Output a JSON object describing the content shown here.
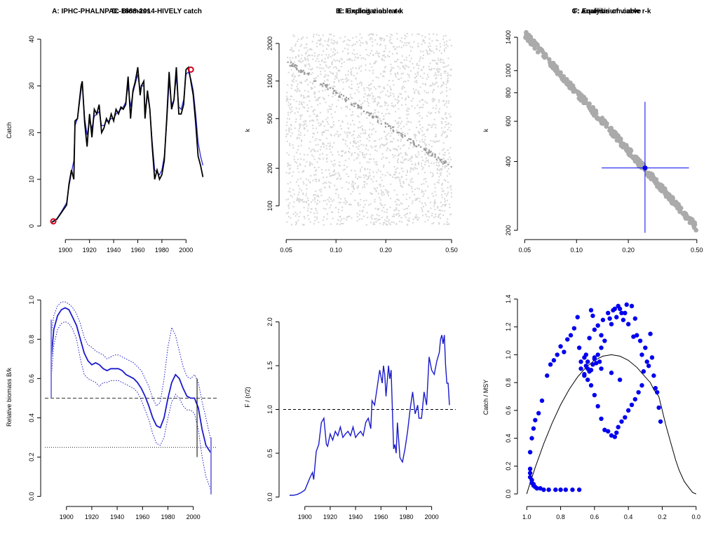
{
  "colors": {
    "catch_line": "#000000",
    "smooth_line": "#2b2bd8",
    "marker": "#d0021b",
    "cloud": "#d6d6d6",
    "viable": "#9a9a9a",
    "viable_big": "#aaaaaa",
    "best": "#0000ee",
    "biomass": "#1a1acc",
    "axis": "#000000"
  },
  "chart_data": [
    {
      "panel": "A",
      "type": "line",
      "title": "A:  IPHC-PHALNPAC-1888-2014-HIVELY catch",
      "xlabel": "",
      "ylabel": "Catch",
      "xlim": [
        1883,
        2019
      ],
      "ylim": [
        -2,
        43
      ],
      "xticks": [
        1900,
        1920,
        1940,
        1960,
        1980,
        2000
      ],
      "yticks": [
        0,
        10,
        20,
        30,
        40
      ],
      "x": [
        1889,
        1893,
        1897,
        1901,
        1903,
        1905,
        1907,
        1908,
        1910,
        1913,
        1914,
        1916,
        1918,
        1920,
        1922,
        1924,
        1926,
        1928,
        1930,
        1932,
        1934,
        1936,
        1938,
        1940,
        1942,
        1944,
        1946,
        1948,
        1950,
        1952,
        1954,
        1956,
        1958,
        1960,
        1962,
        1963,
        1965,
        1966,
        1968,
        1970,
        1972,
        1974,
        1976,
        1978,
        1980,
        1982,
        1984,
        1986,
        1988,
        1990,
        1992,
        1994,
        1996,
        1998,
        2000,
        2002,
        2004,
        2006,
        2008,
        2010,
        2012,
        2014
      ],
      "catch": [
        0.8,
        1.5,
        3.0,
        4.5,
        9.0,
        12.0,
        10.0,
        22.5,
        23.0,
        30.0,
        31.0,
        22.0,
        17.0,
        24.0,
        19.0,
        25.0,
        24.0,
        26.0,
        20.0,
        21.0,
        23.0,
        22.0,
        24.0,
        22.5,
        25.0,
        24.0,
        25.5,
        25.0,
        26.0,
        32.0,
        23.0,
        29.0,
        31.0,
        34.0,
        28.0,
        30.0,
        31.0,
        23.0,
        29.0,
        25.0,
        17.0,
        10.0,
        12.0,
        10.0,
        11.0,
        14.0,
        23.0,
        33.0,
        25.0,
        27.0,
        34.0,
        24.0,
        24.0,
        26.0,
        33.5,
        34.0,
        31.0,
        28.0,
        22.0,
        15.0,
        13.0,
        10.5
      ],
      "smooth": [
        0.9,
        1.6,
        3.2,
        5.0,
        8.5,
        11.5,
        14.0,
        21.5,
        23.0,
        29.0,
        30.5,
        23.0,
        19.5,
        22.5,
        21.0,
        23.5,
        24.0,
        24.5,
        21.5,
        21.5,
        22.5,
        22.5,
        23.0,
        23.0,
        24.0,
        24.5,
        25.0,
        25.5,
        26.5,
        30.0,
        25.5,
        28.5,
        30.5,
        32.5,
        29.0,
        30.0,
        30.0,
        25.0,
        28.0,
        25.0,
        18.0,
        12.0,
        11.5,
        11.0,
        12.0,
        15.0,
        22.0,
        31.0,
        26.0,
        27.0,
        32.0,
        25.5,
        25.0,
        27.0,
        32.5,
        33.0,
        31.5,
        29.0,
        24.0,
        18.0,
        15.0,
        13.0
      ],
      "markers": [
        {
          "x": 1890,
          "y": 1.0
        },
        {
          "x": 2004,
          "y": 33.5
        }
      ]
    },
    {
      "panel": "B",
      "type": "scatter",
      "title": "B: Finding viable r-k",
      "xlabel": "",
      "ylabel": "k",
      "xscale": "log",
      "yscale": "log",
      "xlim": [
        0.048,
        0.53
      ],
      "ylim": [
        58,
        2800
      ],
      "xticks": [
        0.05,
        0.1,
        0.2,
        0.5
      ],
      "xtick_labels": [
        "0.05",
        "0.10",
        "0.20",
        "0.50"
      ],
      "yticks": [
        100,
        200,
        500,
        1000,
        2000
      ],
      "xticks_formatted": true,
      "cloud_r_range": [
        0.05,
        0.5
      ],
      "cloud_k_range": [
        70,
        2400
      ],
      "viable_line": {
        "r": [
          0.05,
          0.5
        ],
        "k": [
          1450,
          205
        ],
        "band": 0.09
      }
    },
    {
      "panel": "C",
      "type": "scatter",
      "title": "C: Analysis of viable r-k",
      "xlabel": "",
      "ylabel": "k",
      "xscale": "log",
      "yscale": "log",
      "xlim": [
        0.048,
        0.53
      ],
      "ylim": [
        190,
        1580
      ],
      "xticks": [
        0.05,
        0.1,
        0.2,
        0.5
      ],
      "xtick_labels": [
        "0.05",
        "0.10",
        "0.20",
        "0.50"
      ],
      "yticks": [
        200,
        400,
        600,
        800,
        1000,
        1400
      ],
      "viable_line": {
        "r": [
          0.05,
          0.5
        ],
        "k": [
          1450,
          205
        ],
        "band": 0.07
      },
      "best": {
        "r": 0.25,
        "k": 375
      },
      "r_ci": [
        0.14,
        0.45
      ],
      "k_ci": [
        195,
        730
      ]
    },
    {
      "panel": "D",
      "type": "line",
      "title": "D: Biomass",
      "xlabel": "",
      "ylabel": "Relative biomass B/k",
      "xlim": [
        1883,
        2019
      ],
      "ylim": [
        -0.03,
        1.04
      ],
      "xticks": [
        1900,
        1920,
        1940,
        1960,
        1980,
        2000
      ],
      "yticks": [
        0.0,
        0.2,
        0.4,
        0.6,
        0.8,
        1.0
      ],
      "ytick_labels": [
        "0.0",
        "0.2",
        "0.4",
        "0.6",
        "0.8",
        "1.0"
      ],
      "x": [
        1888,
        1890,
        1893,
        1896,
        1899,
        1902,
        1905,
        1908,
        1911,
        1914,
        1917,
        1920,
        1923,
        1926,
        1929,
        1932,
        1935,
        1938,
        1941,
        1944,
        1947,
        1950,
        1953,
        1956,
        1959,
        1962,
        1965,
        1968,
        1971,
        1974,
        1977,
        1980,
        1983,
        1986,
        1989,
        1992,
        1995,
        1998,
        2001,
        2004,
        2007,
        2010,
        2014
      ],
      "median": [
        0.7,
        0.85,
        0.92,
        0.95,
        0.96,
        0.95,
        0.91,
        0.87,
        0.8,
        0.73,
        0.69,
        0.67,
        0.68,
        0.67,
        0.65,
        0.64,
        0.65,
        0.65,
        0.65,
        0.64,
        0.62,
        0.61,
        0.6,
        0.58,
        0.55,
        0.51,
        0.46,
        0.4,
        0.36,
        0.35,
        0.4,
        0.5,
        0.58,
        0.62,
        0.6,
        0.55,
        0.51,
        0.5,
        0.5,
        0.45,
        0.34,
        0.26,
        0.22
      ],
      "lower": [
        0.6,
        0.77,
        0.85,
        0.88,
        0.89,
        0.88,
        0.85,
        0.8,
        0.7,
        0.62,
        0.6,
        0.59,
        0.58,
        0.56,
        0.58,
        0.58,
        0.59,
        0.59,
        0.59,
        0.58,
        0.57,
        0.56,
        0.55,
        0.53,
        0.49,
        0.44,
        0.39,
        0.32,
        0.27,
        0.26,
        0.3,
        0.4,
        0.48,
        0.52,
        0.5,
        0.46,
        0.44,
        0.44,
        0.42,
        0.34,
        0.2,
        0.1,
        0.03
      ],
      "upper": [
        0.82,
        0.92,
        0.97,
        0.99,
        0.99,
        0.98,
        0.96,
        0.93,
        0.88,
        0.81,
        0.77,
        0.76,
        0.74,
        0.73,
        0.72,
        0.7,
        0.71,
        0.72,
        0.72,
        0.71,
        0.7,
        0.69,
        0.68,
        0.66,
        0.64,
        0.6,
        0.56,
        0.5,
        0.46,
        0.48,
        0.6,
        0.76,
        0.86,
        0.82,
        0.74,
        0.66,
        0.61,
        0.6,
        0.62,
        0.58,
        0.48,
        0.4,
        0.28
      ],
      "hline_dashed": 0.5,
      "hline_dotted": 0.25,
      "start_bar": {
        "x": 1888,
        "y": [
          0.5,
          0.9
        ]
      },
      "mid_bar": {
        "x": 2003,
        "y": [
          0.2,
          0.6
        ]
      },
      "end_bar": {
        "x": 2014,
        "y": [
          0.01,
          0.3
        ]
      }
    },
    {
      "panel": "E",
      "type": "line",
      "title": "E: Exploitation rate",
      "xlabel": "",
      "ylabel": "F / (r/2)",
      "xlim": [
        1883,
        2019
      ],
      "ylim": [
        -0.06,
        2.34
      ],
      "xticks": [
        1900,
        1920,
        1940,
        1960,
        1980,
        2000
      ],
      "yticks": [
        0.0,
        0.5,
        1.0,
        1.5,
        2.0
      ],
      "ytick_labels": [
        "0.0",
        "0.5",
        "1.0",
        "1.5",
        "2.0"
      ],
      "hline_dashed": 1.0,
      "x": [
        1888,
        1891,
        1894,
        1897,
        1900,
        1902,
        1904,
        1906,
        1907,
        1909,
        1911,
        1913,
        1915,
        1917,
        1918,
        1920,
        1922,
        1924,
        1926,
        1928,
        1930,
        1932,
        1934,
        1936,
        1938,
        1940,
        1942,
        1944,
        1946,
        1948,
        1950,
        1952,
        1953,
        1955,
        1957,
        1959,
        1961,
        1962,
        1963,
        1964,
        1966,
        1967,
        1968,
        1969,
        1970,
        1971,
        1972,
        1973,
        1975,
        1977,
        1979,
        1981,
        1983,
        1985,
        1987,
        1989,
        1990,
        1992,
        1994,
        1996,
        1998,
        2000,
        2002,
        2004,
        2006,
        2007,
        2008,
        2009,
        2010,
        2011,
        2012,
        2013,
        2014
      ],
      "f": [
        0.02,
        0.02,
        0.03,
        0.05,
        0.08,
        0.15,
        0.22,
        0.28,
        0.2,
        0.52,
        0.6,
        0.85,
        0.9,
        0.6,
        0.58,
        0.72,
        0.65,
        0.75,
        0.7,
        0.8,
        0.68,
        0.72,
        0.75,
        0.7,
        0.8,
        0.68,
        0.72,
        0.75,
        0.7,
        0.85,
        0.9,
        0.78,
        1.1,
        1.05,
        1.25,
        1.45,
        1.3,
        1.5,
        1.4,
        1.15,
        1.5,
        1.35,
        1.45,
        1.0,
        0.55,
        0.6,
        0.5,
        0.85,
        0.45,
        0.4,
        0.55,
        0.75,
        1.0,
        1.2,
        0.95,
        1.05,
        0.9,
        0.9,
        1.2,
        1.05,
        1.6,
        1.45,
        1.4,
        1.55,
        1.65,
        1.8,
        1.85,
        1.75,
        1.85,
        1.5,
        1.3,
        1.3,
        1.05
      ]
    },
    {
      "panel": "F",
      "type": "scatter",
      "title": "F: Equilibrium curve",
      "xlabel": "",
      "ylabel": "Catch / MSY",
      "xlim": [
        1.03,
        -0.03
      ],
      "ylim": [
        -0.06,
        1.45
      ],
      "xticks": [
        1.0,
        0.8,
        0.6,
        0.4,
        0.2,
        0.0
      ],
      "xtick_labels": [
        "1.0",
        "0.8",
        "0.6",
        "0.4",
        "0.2",
        "0.0"
      ],
      "yticks": [
        0.0,
        0.2,
        0.4,
        0.6,
        0.8,
        1.0,
        1.2,
        1.4
      ],
      "ytick_labels": [
        "0.0",
        "0.2",
        "0.4",
        "0.6",
        "0.8",
        "1.0",
        "1.2",
        "1.4"
      ],
      "curve_x": [
        1.0,
        0.98,
        0.95,
        0.9,
        0.85,
        0.8,
        0.75,
        0.7,
        0.65,
        0.6,
        0.55,
        0.5,
        0.45,
        0.4,
        0.35,
        0.3,
        0.27,
        0.25,
        0.22,
        0.2,
        0.18,
        0.15,
        0.12,
        0.1,
        0.07,
        0.04,
        0.02,
        0.0
      ],
      "curve_y": [
        0.0,
        0.08,
        0.19,
        0.36,
        0.51,
        0.64,
        0.75,
        0.84,
        0.91,
        0.96,
        0.99,
        1.0,
        0.99,
        0.96,
        0.91,
        0.84,
        0.8,
        0.75,
        0.7,
        0.6,
        0.5,
        0.37,
        0.24,
        0.17,
        0.09,
        0.04,
        0.01,
        0.0
      ],
      "points_x": [
        0.98,
        0.98,
        0.98,
        0.97,
        0.97,
        0.96,
        0.96,
        0.95,
        0.94,
        0.92,
        0.9,
        0.87,
        0.83,
        0.8,
        0.77,
        0.73,
        0.69,
        0.98,
        0.97,
        0.96,
        0.95,
        0.93,
        0.91,
        0.88,
        0.86,
        0.84,
        0.82,
        0.8,
        0.78,
        0.76,
        0.74,
        0.72,
        0.7,
        0.69,
        0.68,
        0.66,
        0.65,
        0.64,
        0.63,
        0.62,
        0.61,
        0.6,
        0.58,
        0.56,
        0.55,
        0.54,
        0.52,
        0.51,
        0.5,
        0.49,
        0.48,
        0.47,
        0.46,
        0.45,
        0.44,
        0.43,
        0.42,
        0.41,
        0.4,
        0.38,
        0.37,
        0.36,
        0.35,
        0.33,
        0.32,
        0.31,
        0.3,
        0.29,
        0.28,
        0.27,
        0.26,
        0.25,
        0.24,
        0.23,
        0.22,
        0.21,
        0.66,
        0.65,
        0.64,
        0.63,
        0.62,
        0.61,
        0.6,
        0.59,
        0.58,
        0.57,
        0.56,
        0.68,
        0.66,
        0.64,
        0.62,
        0.6,
        0.58,
        0.56,
        0.54,
        0.52,
        0.5,
        0.48,
        0.47,
        0.46,
        0.44,
        0.42,
        0.4,
        0.38,
        0.36,
        0.34,
        0.32,
        0.45,
        0.5,
        0.56,
        0.6
      ],
      "points_y": [
        0.18,
        0.15,
        0.12,
        0.1,
        0.08,
        0.07,
        0.06,
        0.05,
        0.04,
        0.04,
        0.03,
        0.03,
        0.03,
        0.03,
        0.03,
        0.03,
        0.03,
        0.3,
        0.4,
        0.47,
        0.53,
        0.58,
        0.67,
        0.85,
        0.93,
        0.96,
        1.0,
        1.06,
        1.02,
        1.11,
        1.14,
        1.19,
        1.27,
        1.05,
        0.95,
        0.98,
        1.0,
        0.9,
        1.12,
        1.32,
        1.28,
        1.18,
        1.21,
        1.14,
        1.25,
        1.1,
        1.3,
        1.26,
        1.22,
        1.32,
        1.33,
        1.27,
        1.35,
        1.33,
        1.3,
        1.25,
        1.3,
        1.36,
        1.22,
        1.35,
        1.13,
        1.26,
        1.14,
        1.1,
        1.0,
        0.88,
        1.05,
        0.95,
        0.92,
        1.15,
        0.98,
        0.85,
        0.76,
        0.73,
        0.62,
        0.52,
        0.86,
        0.92,
        0.95,
        0.88,
        0.89,
        0.93,
        0.97,
        0.94,
        1.0,
        0.95,
        1.05,
        0.9,
        0.85,
        0.82,
        0.78,
        0.71,
        0.63,
        0.54,
        0.46,
        0.45,
        0.42,
        0.41,
        0.44,
        0.48,
        0.52,
        0.55,
        0.6,
        0.64,
        0.68,
        0.73,
        0.78,
        0.82,
        0.87,
        0.9,
        0.98
      ]
    }
  ]
}
